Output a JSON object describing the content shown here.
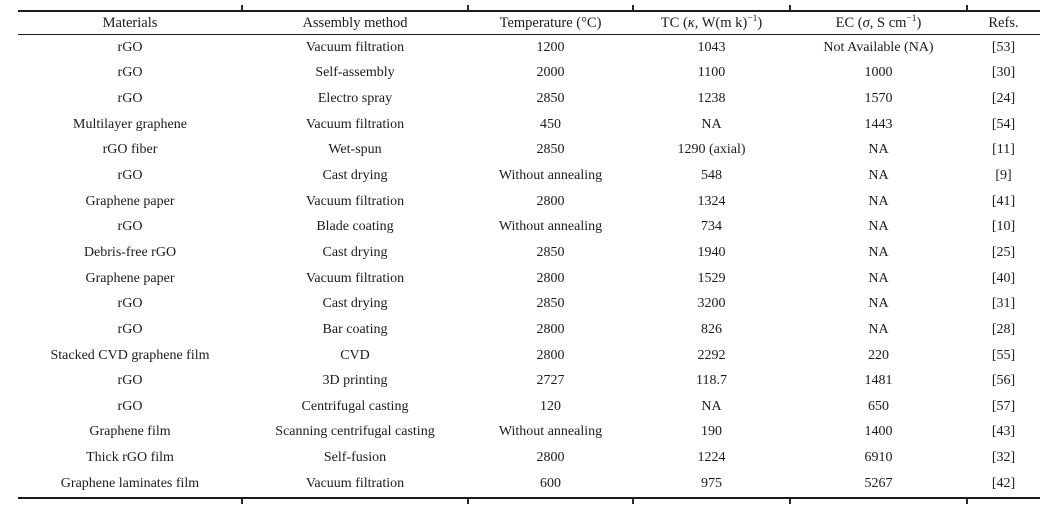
{
  "table": {
    "columns": [
      {
        "id": "materials",
        "name": "materials",
        "segments": [
          {
            "t": "Materials"
          }
        ]
      },
      {
        "id": "assembly",
        "name": "assembly-method",
        "segments": [
          {
            "t": "Assembly method"
          }
        ]
      },
      {
        "id": "temperature",
        "name": "temperature",
        "segments": [
          {
            "t": "Temperature (°C)"
          }
        ]
      },
      {
        "id": "tc",
        "name": "thermal-conductivity",
        "segments": [
          {
            "t": "TC ("
          },
          {
            "t": "κ",
            "i": true
          },
          {
            "t": ", W(m k)"
          },
          {
            "t": "−1",
            "sup": true
          },
          {
            "t": ")"
          }
        ]
      },
      {
        "id": "ec",
        "name": "electrical-conductivity",
        "segments": [
          {
            "t": "EC ("
          },
          {
            "t": "σ",
            "i": true
          },
          {
            "t": ", S cm"
          },
          {
            "t": "−1",
            "sup": true
          },
          {
            "t": ")"
          }
        ]
      },
      {
        "id": "refs",
        "name": "references",
        "segments": [
          {
            "t": "Refs."
          }
        ]
      }
    ],
    "rows": [
      {
        "materials": "rGO",
        "assembly": "Vacuum filtration",
        "temperature": "1200",
        "tc": "1043",
        "ec": "Not Available (NA)",
        "refs": "[53]"
      },
      {
        "materials": "rGO",
        "assembly": "Self-assembly",
        "temperature": "2000",
        "tc": "1100",
        "ec": "1000",
        "refs": "[30]"
      },
      {
        "materials": "rGO",
        "assembly": "Electro spray",
        "temperature": "2850",
        "tc": "1238",
        "ec": "1570",
        "refs": "[24]"
      },
      {
        "materials": "Multilayer graphene",
        "assembly": "Vacuum filtration",
        "temperature": "450",
        "tc": "NA",
        "ec": "1443",
        "refs": "[54]"
      },
      {
        "materials": "rGO fiber",
        "assembly": "Wet-spun",
        "temperature": "2850",
        "tc": "1290 (axial)",
        "ec": "NA",
        "refs": "[11]"
      },
      {
        "materials": "rGO",
        "assembly": "Cast drying",
        "temperature": "Without annealing",
        "tc": "548",
        "ec": "NA",
        "refs": "[9]"
      },
      {
        "materials": "Graphene paper",
        "assembly": "Vacuum filtration",
        "temperature": "2800",
        "tc": "1324",
        "ec": "NA",
        "refs": "[41]"
      },
      {
        "materials": "rGO",
        "assembly": "Blade coating",
        "temperature": "Without annealing",
        "tc": "734",
        "ec": "NA",
        "refs": "[10]"
      },
      {
        "materials": "Debris-free rGO",
        "assembly": "Cast drying",
        "temperature": "2850",
        "tc": "1940",
        "ec": "NA",
        "refs": "[25]"
      },
      {
        "materials": "Graphene paper",
        "assembly": "Vacuum filtration",
        "temperature": "2800",
        "tc": "1529",
        "ec": "NA",
        "refs": "[40]"
      },
      {
        "materials": "rGO",
        "assembly": "Cast drying",
        "temperature": "2850",
        "tc": "3200",
        "ec": "NA",
        "refs": "[31]"
      },
      {
        "materials": "rGO",
        "assembly": "Bar coating",
        "temperature": "2800",
        "tc": "826",
        "ec": "NA",
        "refs": "[28]"
      },
      {
        "materials": "Stacked CVD graphene film",
        "assembly": "CVD",
        "temperature": "2800",
        "tc": "2292",
        "ec": "220",
        "refs": "[55]"
      },
      {
        "materials": "rGO",
        "assembly": "3D printing",
        "temperature": "2727",
        "tc": "118.7",
        "ec": "1481",
        "refs": "[56]"
      },
      {
        "materials": "rGO",
        "assembly": "Centrifugal casting",
        "temperature": "120",
        "tc": "NA",
        "ec": "650",
        "refs": "[57]"
      },
      {
        "materials": "Graphene film",
        "assembly": "Scanning centrifugal casting",
        "temperature": "Without annealing",
        "tc": "190",
        "ec": "1400",
        "refs": "[43]"
      },
      {
        "materials": "Thick rGO film",
        "assembly": "Self-fusion",
        "temperature": "2800",
        "tc": "1224",
        "ec": "6910",
        "refs": "[32]"
      },
      {
        "materials": "Graphene laminates film",
        "assembly": "Vacuum filtration",
        "temperature": "600",
        "tc": "975",
        "ec": "5267",
        "refs": "[42]"
      }
    ]
  },
  "colors": {
    "text": "#1b1b1b",
    "rule": "#1c1c1c"
  }
}
